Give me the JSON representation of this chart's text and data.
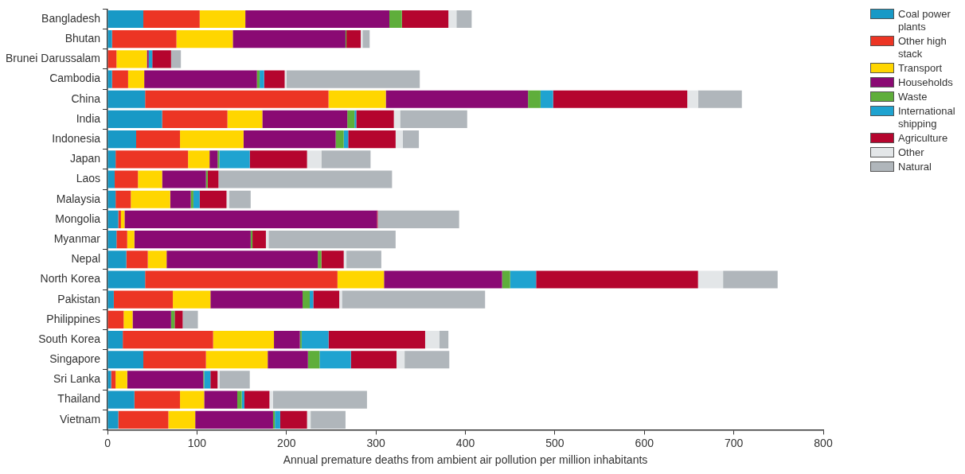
{
  "chart_data": {
    "type": "bar",
    "orientation": "horizontal",
    "stacked": true,
    "xlabel": "Annual premature deaths from ambient air pollution per million inhabitants",
    "categories": [
      "Bangladesh",
      "Bhutan",
      "Brunei Darussalam",
      "Cambodia",
      "China",
      "India",
      "Indonesia",
      "Japan",
      "Laos",
      "Malaysia",
      "Mongolia",
      "Myanmar",
      "Nepal",
      "North Korea",
      "Pakistan",
      "Philippines",
      "South Korea",
      "Singapore",
      "Sri Lanka",
      "Thailand",
      "Vietnam"
    ],
    "xlim": [
      0,
      800
    ],
    "xticks": [
      0,
      100,
      200,
      300,
      400,
      500,
      600,
      700,
      800
    ],
    "grid": false,
    "legend": "top right",
    "series": [
      {
        "name": "Coal power plants",
        "color": "#1899c6",
        "values": [
          40,
          5,
          0,
          5,
          42,
          61,
          32,
          9,
          8,
          9,
          12,
          10,
          21,
          42,
          7,
          0,
          17,
          40,
          4,
          30,
          12
        ]
      },
      {
        "name": "Other high stack",
        "color": "#ec3524",
        "values": [
          63,
          72,
          10,
          18,
          205,
          73,
          49,
          81,
          26,
          17,
          3,
          12,
          24,
          215,
          66,
          18,
          101,
          70,
          5,
          51,
          56
        ]
      },
      {
        "name": "Transport",
        "color": "#ffd600",
        "values": [
          51,
          63,
          34,
          18,
          64,
          39,
          71,
          24,
          27,
          44,
          4,
          8,
          21,
          52,
          42,
          10,
          68,
          69,
          13,
          27,
          30
        ]
      },
      {
        "name": "Households",
        "color": "#8a0a73",
        "values": [
          161,
          126,
          2,
          126,
          159,
          95,
          103,
          9,
          49,
          23,
          282,
          130,
          169,
          132,
          103,
          43,
          29,
          45,
          85,
          37,
          87
        ]
      },
      {
        "name": "Waste",
        "color": "#5fae3b",
        "values": [
          14,
          1,
          0,
          3,
          14,
          8,
          9,
          2,
          2,
          3,
          0,
          2,
          4,
          9,
          8,
          4,
          2,
          13,
          1,
          5,
          2
        ]
      },
      {
        "name": "International shipping",
        "color": "#1fa3d0",
        "values": [
          0,
          0,
          4,
          5,
          14,
          2,
          5,
          34,
          0,
          7,
          0,
          0,
          0,
          29,
          4,
          0,
          30,
          35,
          7,
          3,
          6
        ]
      },
      {
        "name": "Agriculture",
        "color": "#b5052e",
        "values": [
          52,
          16,
          21,
          23,
          150,
          42,
          53,
          64,
          12,
          30,
          1,
          15,
          25,
          181,
          29,
          9,
          108,
          51,
          8,
          28,
          30
        ]
      },
      {
        "name": "Other",
        "color": "#e3e6e8",
        "values": [
          9,
          2,
          0,
          2,
          12,
          7,
          8,
          16,
          0,
          3,
          0,
          3,
          3,
          28,
          3,
          null,
          16,
          9,
          2,
          4,
          4
        ]
      },
      {
        "name": "Natural",
        "color": "#b0b6bb",
        "values": [
          17,
          8,
          11,
          149,
          49,
          75,
          18,
          55,
          194,
          24,
          91,
          142,
          39,
          61,
          160,
          17,
          10,
          50,
          34,
          105,
          39
        ]
      }
    ]
  }
}
